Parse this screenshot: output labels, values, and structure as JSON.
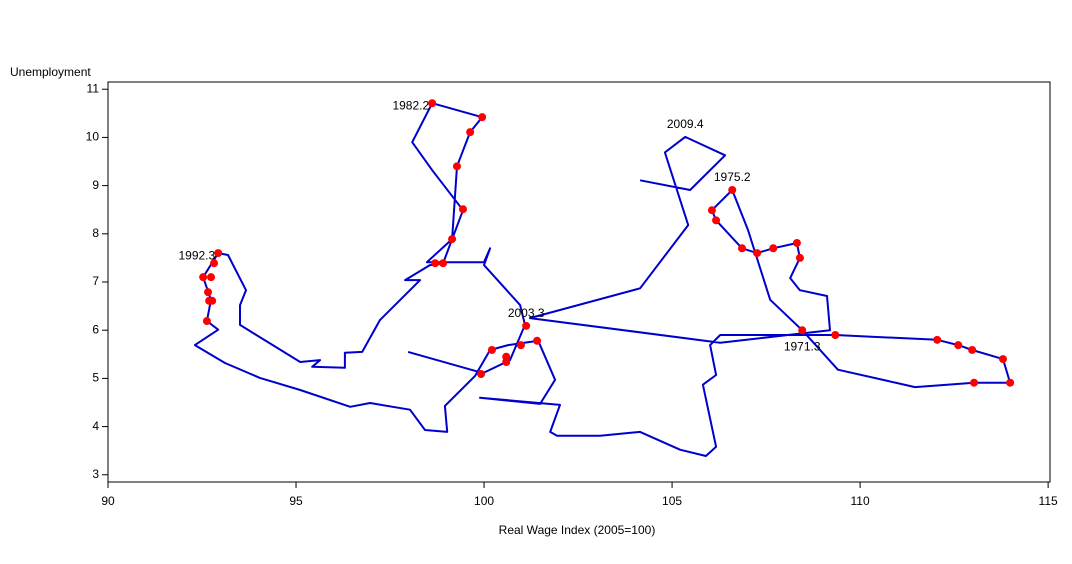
{
  "chart_data": {
    "type": "connected_scatter",
    "xlabel": "Real Wage Index (2005=100)",
    "ylabel": "Unemployment",
    "xlim": [
      90,
      115.05
    ],
    "ylim": [
      2.85,
      11.15
    ],
    "xticks": [
      90,
      95,
      100,
      105,
      110,
      115
    ],
    "yticks": [
      3,
      4,
      5,
      6,
      7,
      8,
      9,
      10,
      11
    ],
    "path": {
      "color": "#0000cc",
      "x": [
        104.15,
        105.48,
        106.41,
        105.35,
        104.81,
        105.43,
        104.15,
        101.22,
        106.28,
        109.2,
        109.12,
        108.4,
        108.14,
        108.4,
        108.32,
        107.69,
        107.26,
        106.86,
        106.17,
        106.06,
        106.6,
        107.02,
        107.61,
        108.46,
        109.41,
        111.46,
        113.03,
        113.99,
        113.8,
        112.98,
        112.61,
        112.05,
        109.34,
        106.28,
        106.01,
        106.17,
        105.82,
        106.17,
        105.9,
        105.21,
        104.15,
        103.09,
        101.94,
        101.76,
        102.02,
        99.89,
        101.49,
        101.89,
        101.44,
        100.64,
        100.16,
        99.76,
        98.96,
        99.02,
        98.43,
        98.03,
        96.97,
        96.44,
        95.11,
        94.04,
        93.11,
        92.31,
        92.93,
        92.63,
        92.74,
        92.53,
        92.93,
        93.19,
        93.67,
        93.51,
        93.51,
        95.11,
        95.64,
        95.43,
        96.3,
        96.3,
        96.76,
        97.23,
        98.3,
        97.9,
        98.56,
        98.91,
        99.44,
        98.62,
        98.09,
        98.62,
        99.95,
        99.63,
        99.28,
        99.15,
        98.48,
        100.0,
        100.16,
        100.0,
        100.96,
        101.09,
        100.69,
        99.97,
        97.98
      ],
      "y": [
        9.11,
        8.91,
        9.63,
        10.01,
        9.69,
        8.18,
        6.87,
        6.25,
        5.74,
        6.0,
        6.71,
        6.83,
        7.08,
        7.5,
        7.81,
        7.7,
        7.6,
        7.7,
        8.28,
        8.49,
        8.91,
        8.08,
        6.63,
        6.0,
        5.18,
        4.82,
        4.91,
        4.91,
        5.4,
        5.59,
        5.69,
        5.8,
        5.9,
        5.9,
        5.69,
        5.07,
        4.87,
        3.58,
        3.39,
        3.52,
        3.89,
        3.81,
        3.81,
        3.89,
        4.45,
        4.6,
        4.47,
        4.97,
        5.78,
        5.69,
        5.59,
        5.05,
        4.43,
        3.89,
        3.93,
        4.35,
        4.49,
        4.41,
        4.76,
        5.01,
        5.32,
        5.69,
        6.01,
        6.19,
        6.63,
        7.1,
        7.6,
        7.56,
        6.83,
        6.52,
        6.11,
        5.34,
        5.38,
        5.24,
        5.22,
        5.53,
        5.55,
        6.21,
        7.04,
        7.04,
        7.35,
        7.39,
        8.49,
        9.32,
        9.9,
        10.71,
        10.42,
        10.11,
        9.4,
        7.89,
        7.41,
        7.41,
        7.7,
        7.35,
        6.52,
        6.11,
        5.38,
        5.11,
        5.55
      ]
    },
    "points": {
      "color": "#ff0000",
      "x": [
        98.62,
        99.95,
        99.63,
        99.28,
        99.44,
        99.15,
        98.91,
        98.7,
        92.93,
        92.82,
        92.53,
        92.74,
        92.66,
        92.69,
        92.77,
        92.63,
        106.6,
        106.06,
        106.17,
        106.86,
        107.26,
        107.69,
        108.32,
        108.4,
        108.46,
        109.34,
        112.05,
        112.61,
        112.98,
        113.8,
        113.99,
        113.03,
        101.12,
        101.41,
        100.98,
        100.59,
        100.59,
        100.21,
        99.92
      ],
      "y": [
        10.71,
        10.42,
        10.11,
        9.4,
        8.51,
        7.89,
        7.39,
        7.39,
        7.6,
        7.39,
        7.1,
        7.1,
        6.79,
        6.61,
        6.61,
        6.19,
        8.91,
        8.49,
        8.28,
        7.7,
        7.6,
        7.7,
        7.81,
        7.5,
        6.0,
        5.9,
        5.8,
        5.69,
        5.59,
        5.4,
        4.91,
        4.91,
        6.09,
        5.78,
        5.69,
        5.45,
        5.34,
        5.59,
        5.09
      ]
    },
    "annotations": [
      {
        "text": "1982.2",
        "x": 98.62,
        "y": 10.71,
        "position": "left"
      },
      {
        "text": "2009.4",
        "x": 105.35,
        "y": 10.01,
        "position": "above"
      },
      {
        "text": "1975.2",
        "x": 106.6,
        "y": 8.91,
        "position": "above"
      },
      {
        "text": "1992.3",
        "x": 92.93,
        "y": 7.6,
        "position": "left"
      },
      {
        "text": "2003.3",
        "x": 101.12,
        "y": 6.09,
        "position": "above"
      },
      {
        "text": "1971.3",
        "x": 108.46,
        "y": 6.0,
        "position": "below"
      }
    ]
  }
}
